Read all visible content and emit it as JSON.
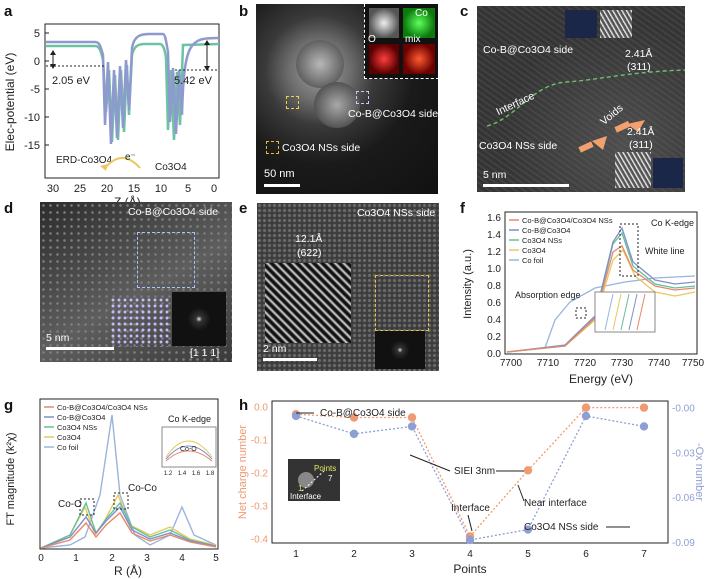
{
  "figure": {
    "panel_labels": [
      "a",
      "b",
      "c",
      "d",
      "e",
      "f",
      "g",
      "h"
    ]
  },
  "panel_a": {
    "ylabel": "Elec-potential (eV)",
    "xlabel": "Z (Å)",
    "xticks": [
      "30",
      "25",
      "20",
      "15",
      "10",
      "5",
      "0"
    ],
    "yticks": [
      "5",
      "0",
      "-5",
      "-10",
      "-15"
    ],
    "ann_left": "2.05 eV",
    "ann_right": "5.42 eV",
    "left_label": "ERD-Co3O4",
    "right_label": "Co3O4",
    "electron": "e⁻",
    "colors": {
      "purple": "#8f98cf",
      "green": "#6ac4a3"
    }
  },
  "panel_b": {
    "inset_labels": [
      "Co",
      "O",
      "mix"
    ],
    "label_side1": "Co-B@Co3O4 side",
    "label_side2": "Co3O4 NSs side",
    "scalebar": "50 nm"
  },
  "panel_c": {
    "title": "Co-B@Co3O4 side",
    "spacing_top": "2.41Å",
    "plane_top": "(311)",
    "interface": "Interface",
    "voids": "Voids",
    "side_bottom": "Co3O4 NSs side",
    "spacing_bot": "2.41Å",
    "plane_bot": "(311)",
    "scalebar": "5 nm"
  },
  "panel_d": {
    "title": "Co-B@Co3O4 side",
    "scalebar": "5 nm",
    "zone": "[1 1 1]"
  },
  "panel_e": {
    "title": "Co3O4 NSs side",
    "spacing": "12.1Å",
    "plane": "(622)",
    "scalebar": "2 nm"
  },
  "panel_f": {
    "title": "Co K-edge",
    "xlabel": "Energy (eV)",
    "ylabel": "Intensity (a.u.)",
    "xticks": [
      "7700",
      "7710",
      "7720",
      "7730",
      "7740",
      "7750"
    ],
    "yticks": [
      "0.0",
      "0.2",
      "0.4",
      "0.6",
      "0.8",
      "1.0",
      "1.2",
      "1.4",
      "1.6"
    ],
    "legend": [
      "Co-B@Co3O4/Co3O4 NSs",
      "Co-B@Co3O4",
      "Co3O4 NSs",
      "Co3O4",
      "Co foil"
    ],
    "colors": [
      "#e8886a",
      "#7f8fc9",
      "#65c199",
      "#e8c860",
      "#9ab4dc"
    ],
    "white_line": "White line",
    "absorption_edge": "Absorption edge"
  },
  "panel_g": {
    "title": "Co K-edge",
    "xlabel": "R (Å)",
    "ylabel": "FT magnitude (k²χ)",
    "xticks": [
      "0",
      "1",
      "2",
      "3",
      "4",
      "5"
    ],
    "legend": [
      "Co-B@Co3O4/Co3O4 NSs",
      "Co-B@Co3O4",
      "Co3O4 NSs",
      "Co3O4",
      "Co foil"
    ],
    "colors": [
      "#e8886a",
      "#7f8fc9",
      "#65c199",
      "#e8c860",
      "#9ab4dc"
    ],
    "co_o": "Co-O",
    "co_co": "Co-Co",
    "inset_label": "Co-O",
    "inset_ticks": [
      "1.2",
      "1.4",
      "1.6",
      "1.8"
    ]
  },
  "chart_data": [
    {
      "type": "line",
      "panel": "h",
      "xlabel": "Points",
      "ylabel": "Net charge number",
      "ylabel_right": "-Ox number",
      "x": [
        1,
        2,
        3,
        4,
        5,
        6,
        7
      ],
      "xticks": [
        "1",
        "2",
        "3",
        "4",
        "5",
        "6",
        "7"
      ],
      "yticks_left": [
        "0.0",
        "-0.1",
        "-0.2",
        "-0.3",
        "-0.4"
      ],
      "yticks_right": [
        "-0.00",
        "-0.03",
        "-0.06",
        "-0.09"
      ],
      "ylim_left": [
        -0.41,
        0.02
      ],
      "ylim_right": [
        -0.09,
        0.005
      ],
      "series": [
        {
          "name": "Net charge number",
          "axis": "left",
          "color": "#ef9a72",
          "values": [
            -0.02,
            -0.03,
            -0.03,
            -0.39,
            -0.19,
            0.0,
            0.0
          ]
        },
        {
          "name": "-Ox number",
          "axis": "right",
          "color": "#8e9fd4",
          "values": [
            -0.005,
            -0.017,
            -0.012,
            -0.088,
            -0.081,
            -0.005,
            -0.012
          ]
        }
      ],
      "annotations": {
        "top": "Co-B@Co3O4 side",
        "mid": "SIEI 3nm",
        "interface": "Interface",
        "near": "Near interface",
        "bottom": "Co3O4 NSs side"
      },
      "inset": {
        "points": "Points",
        "one": "1",
        "seven": "7",
        "interface": "Interface"
      }
    }
  ]
}
